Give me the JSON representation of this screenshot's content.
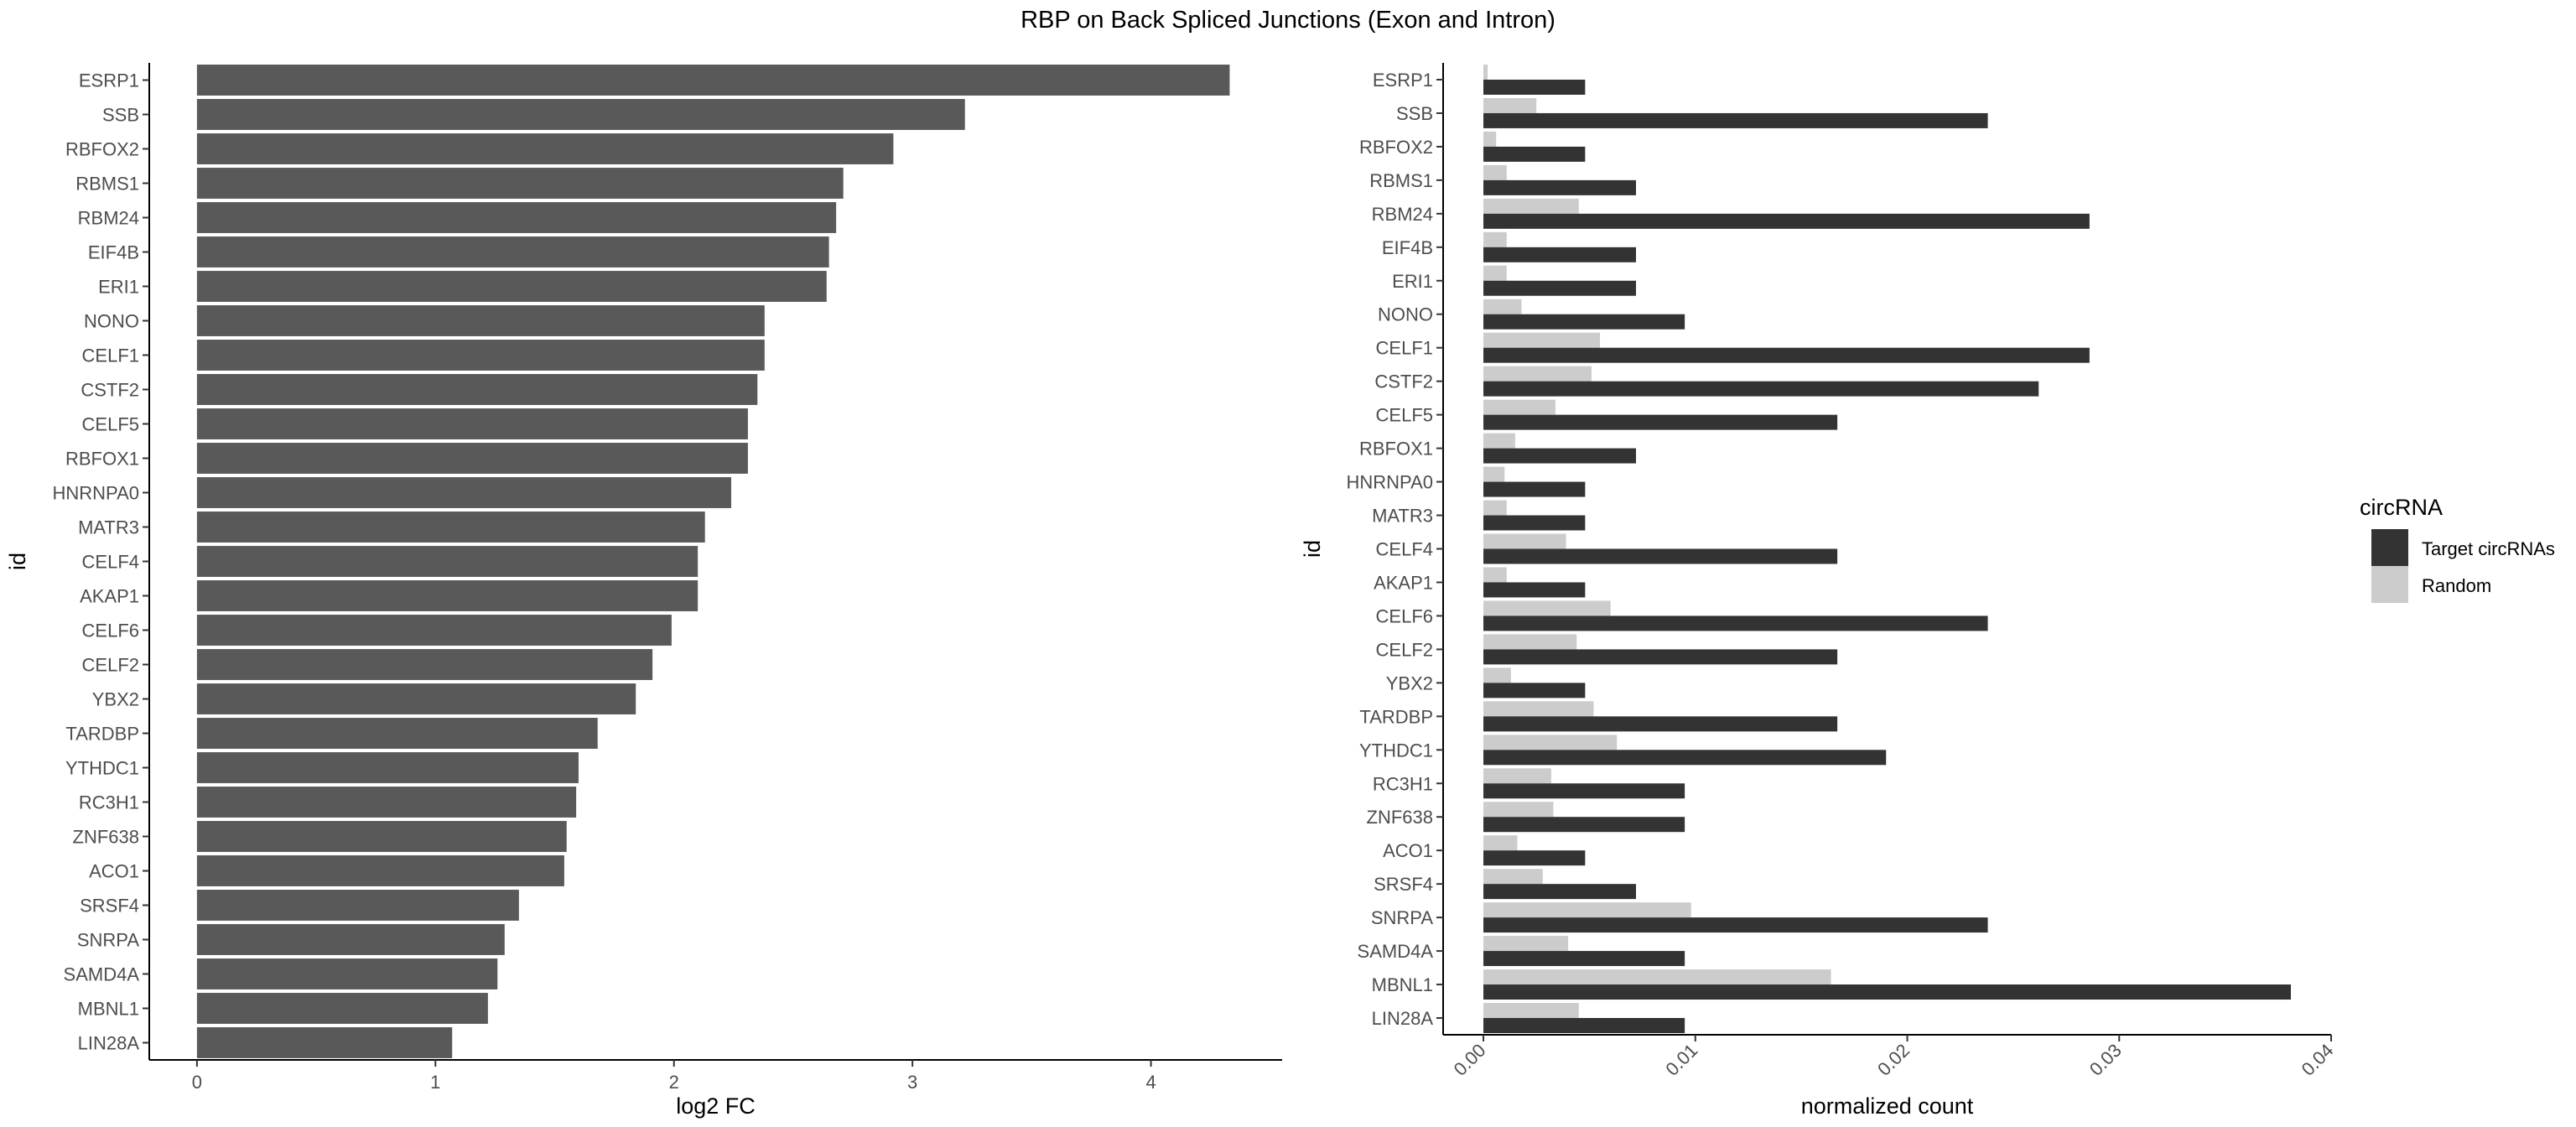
{
  "figure_title": "RBP on Back Spliced Junctions (Exon and Intron)",
  "colors": {
    "bar_left": "#595959",
    "target": "#333333",
    "random": "#cccccc",
    "axis": "#000000",
    "tick_text": "#4d4d4d",
    "label_text": "#000000"
  },
  "chart_data": [
    {
      "type": "bar",
      "orientation": "horizontal",
      "xlabel": "log2 FC",
      "ylabel": "id",
      "xlim": [
        -0.2,
        4.55
      ],
      "xticks": [
        0,
        1,
        2,
        3,
        4
      ],
      "categories": [
        "ESRP1",
        "SSB",
        "RBFOX2",
        "RBMS1",
        "RBM24",
        "EIF4B",
        "ERI1",
        "NONO",
        "CELF1",
        "CSTF2",
        "CELF5",
        "RBFOX1",
        "HNRNPA0",
        "MATR3",
        "CELF4",
        "AKAP1",
        "CELF6",
        "CELF2",
        "YBX2",
        "TARDBP",
        "YTHDC1",
        "RC3H1",
        "ZNF638",
        "ACO1",
        "SRSF4",
        "SNRPA",
        "SAMD4A",
        "MBNL1",
        "LIN28A"
      ],
      "values": [
        4.33,
        3.22,
        2.92,
        2.71,
        2.68,
        2.65,
        2.64,
        2.38,
        2.38,
        2.35,
        2.31,
        2.31,
        2.24,
        2.13,
        2.1,
        2.1,
        1.99,
        1.91,
        1.84,
        1.68,
        1.6,
        1.59,
        1.55,
        1.54,
        1.35,
        1.29,
        1.26,
        1.22,
        1.07
      ]
    },
    {
      "type": "bar",
      "orientation": "horizontal",
      "grouped": true,
      "xlabel": "normalized count",
      "ylabel": "id",
      "xlim": [
        -0.0019,
        0.04
      ],
      "xticks": [
        0,
        0.01,
        0.02,
        0.03,
        0.04
      ],
      "xtick_labels": [
        "0.00",
        "0.01",
        "0.02",
        "0.03",
        "0.04"
      ],
      "categories": [
        "ESRP1",
        "SSB",
        "RBFOX2",
        "RBMS1",
        "RBM24",
        "EIF4B",
        "ERI1",
        "NONO",
        "CELF1",
        "CSTF2",
        "CELF5",
        "RBFOX1",
        "HNRNPA0",
        "MATR3",
        "CELF4",
        "AKAP1",
        "CELF6",
        "CELF2",
        "YBX2",
        "TARDBP",
        "YTHDC1",
        "RC3H1",
        "ZNF638",
        "ACO1",
        "SRSF4",
        "SNRPA",
        "SAMD4A",
        "MBNL1",
        "LIN28A"
      ],
      "legend_title": "circRNA",
      "legend_position": "right",
      "series": [
        {
          "name": "Target circRNAs",
          "color": "#333333",
          "values": [
            0.0048,
            0.0238,
            0.0048,
            0.0072,
            0.0286,
            0.0072,
            0.0072,
            0.0095,
            0.0286,
            0.0262,
            0.0167,
            0.0072,
            0.0048,
            0.0048,
            0.0167,
            0.0048,
            0.0238,
            0.0167,
            0.0048,
            0.0167,
            0.019,
            0.0095,
            0.0095,
            0.0048,
            0.0072,
            0.0238,
            0.0095,
            0.0381,
            0.0095
          ]
        },
        {
          "name": "Random",
          "color": "#cccccc",
          "values": [
            0.0002,
            0.0025,
            0.0006,
            0.0011,
            0.0045,
            0.0011,
            0.0011,
            0.0018,
            0.0055,
            0.0051,
            0.0034,
            0.0015,
            0.001,
            0.0011,
            0.0039,
            0.0011,
            0.006,
            0.0044,
            0.0013,
            0.0052,
            0.0063,
            0.0032,
            0.0033,
            0.0016,
            0.0028,
            0.0098,
            0.004,
            0.0164,
            0.0045
          ]
        }
      ]
    }
  ]
}
